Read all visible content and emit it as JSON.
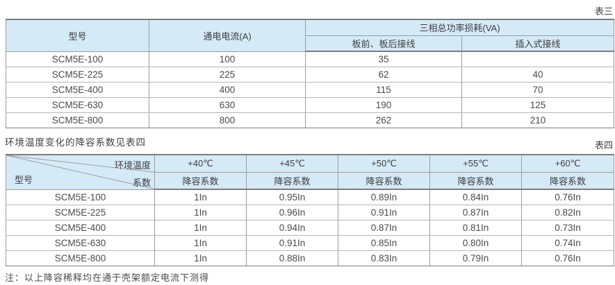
{
  "colors": {
    "header-fill": "#d5eaf7",
    "border-dark": "#7d7d7d",
    "border-mid": "#9c9c9c",
    "border-light": "#b6b6b6",
    "text": "#474747"
  },
  "table3": {
    "tag": "表三",
    "headers": {
      "model": "型号",
      "current": "通电电流(A)",
      "power_loss": "三相总功率损耗(VA)",
      "front_rear": "板前、板后接线",
      "plug_in": "插入式接线"
    },
    "rows": [
      [
        "SCM5E-100",
        "100",
        "35",
        ""
      ],
      [
        "SCM5E-225",
        "225",
        "62",
        "40"
      ],
      [
        "SCM5E-400",
        "400",
        "115",
        "70"
      ],
      [
        "SCM5E-630",
        "630",
        "190",
        "125"
      ],
      [
        "SCM5E-800",
        "800",
        "262",
        "210"
      ]
    ]
  },
  "between_text": "环境温度变化的降容系数见表四",
  "table4": {
    "tag": "表四",
    "diagonal": {
      "top_right": "环境温度",
      "middle_right": "系数",
      "bottom_left": "型号"
    },
    "temp_headers": [
      "+40℃",
      "+45℃",
      "+50℃",
      "+55℃",
      "+60℃"
    ],
    "sub_header": "降容系数",
    "rows": [
      [
        "SCM5E-100",
        "1In",
        "0.95In",
        "0.89In",
        "0.84In",
        "0.76In"
      ],
      [
        "SCM5E-225",
        "1In",
        "0.96In",
        "0.91In",
        "0.87In",
        "0.82In"
      ],
      [
        "SCM5E-400",
        "1In",
        "0.94In",
        "0.87In",
        "0.81In",
        "0.73In"
      ],
      [
        "SCM5E-630",
        "1In",
        "0.91In",
        "0.85In",
        "0.80In",
        "0.74In"
      ],
      [
        "SCM5E-800",
        "1In",
        "0.88In",
        "0.83In",
        "0.79In",
        "0.76In"
      ]
    ]
  },
  "note": "注：以上降容稀释均在通于壳架额定电流下测得"
}
